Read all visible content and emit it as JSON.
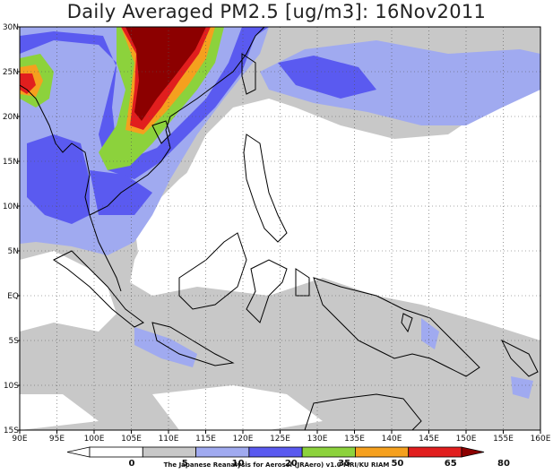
{
  "title": "Daily Averaged PM2.5 [ug/m3]: 16Nov2011",
  "credit": "The Japanese Reanalysis for Aerosol (JRAero) v1.0 MRI/KU RIAM",
  "map": {
    "lon_range": [
      90,
      160
    ],
    "lat_range": [
      -15,
      30
    ],
    "lon_ticks": [
      "90E",
      "95E",
      "100E",
      "105E",
      "110E",
      "115E",
      "120E",
      "125E",
      "130E",
      "135E",
      "140E",
      "145E",
      "150E",
      "155E",
      "160E"
    ],
    "lat_ticks": [
      "30N",
      "25N",
      "20N",
      "15N",
      "10N",
      "5N",
      "EQ",
      "5S",
      "10S",
      "15S"
    ],
    "grid": "dotted"
  },
  "colorbar": {
    "levels": [
      "0",
      "5",
      "10",
      "20",
      "35",
      "50",
      "65",
      "80"
    ],
    "colors": [
      "#ffffff",
      "#ffffff",
      "#c8c8c8",
      "#a0aaf0",
      "#5a5af0",
      "#8cd23c",
      "#f5a01e",
      "#e11e1e",
      "#8c0000"
    ]
  }
}
